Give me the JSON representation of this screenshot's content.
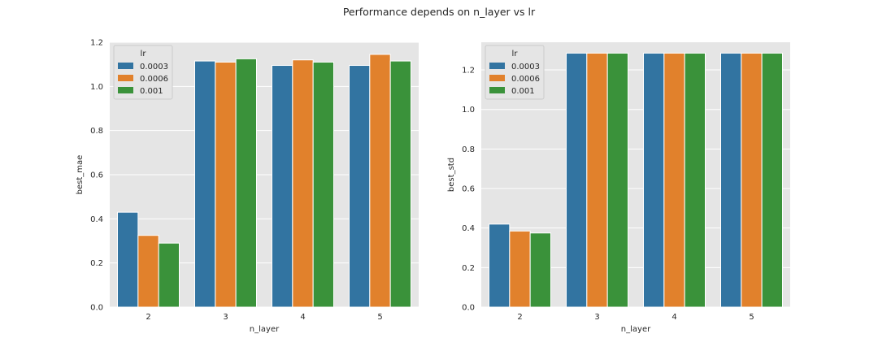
{
  "suptitle": "Performance depends on n_layer vs lr",
  "colors": {
    "0.0003": "#3274a1",
    "0.0006": "#e1812c",
    "0.001": "#3a923a",
    "plot_bg": "#e5e5e5",
    "grid": "#ffffff"
  },
  "chart_data": [
    {
      "type": "bar",
      "xlabel": "n_layer",
      "ylabel": "best_mae",
      "categories": [
        "2",
        "3",
        "4",
        "5"
      ],
      "ylim": [
        0,
        1.2
      ],
      "yticks": [
        "0.0",
        "0.2",
        "0.4",
        "0.6",
        "0.8",
        "1.0",
        "1.2"
      ],
      "legend_title": "lr",
      "legend_position": "top-left",
      "grid": true,
      "series": [
        {
          "name": "0.0003",
          "values": [
            0.43,
            1.115,
            1.095,
            1.095
          ]
        },
        {
          "name": "0.0006",
          "values": [
            0.325,
            1.11,
            1.12,
            1.145
          ]
        },
        {
          "name": "0.001",
          "values": [
            0.29,
            1.125,
            1.11,
            1.115
          ]
        }
      ]
    },
    {
      "type": "bar",
      "xlabel": "n_layer",
      "ylabel": "best_std",
      "categories": [
        "2",
        "3",
        "4",
        "5"
      ],
      "ylim": [
        0,
        1.34
      ],
      "yticks": [
        "0.0",
        "0.2",
        "0.4",
        "0.6",
        "0.8",
        "1.0",
        "1.2"
      ],
      "legend_title": "lr",
      "legend_position": "top-left",
      "grid": true,
      "series": [
        {
          "name": "0.0003",
          "values": [
            0.42,
            1.285,
            1.285,
            1.285
          ]
        },
        {
          "name": "0.0006",
          "values": [
            0.385,
            1.285,
            1.285,
            1.285
          ]
        },
        {
          "name": "0.001",
          "values": [
            0.375,
            1.285,
            1.285,
            1.285
          ]
        }
      ]
    }
  ]
}
